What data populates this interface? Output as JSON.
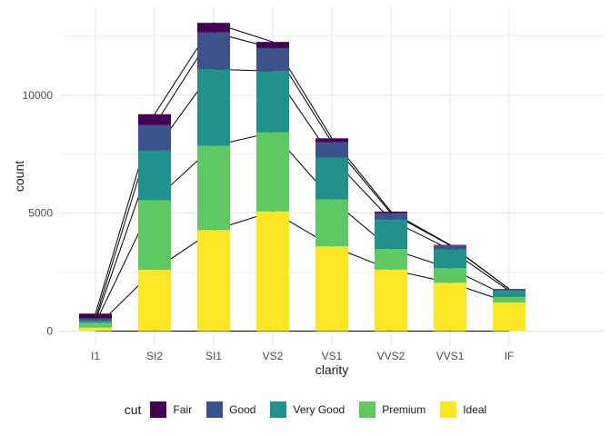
{
  "chart_data": {
    "type": "bar",
    "variant": "stacked-bars-with-cumulative-boundary-lines",
    "title": "",
    "xlabel": "clarity",
    "ylabel": "count",
    "categories": [
      "I1",
      "SI2",
      "SI1",
      "VS2",
      "VS1",
      "VVS2",
      "VVS1",
      "IF"
    ],
    "series": [
      {
        "name": "Fair",
        "color": "#440154",
        "values": [
          210,
          466,
          408,
          261,
          170,
          69,
          17,
          9
        ]
      },
      {
        "name": "Good",
        "color": "#3b528b",
        "values": [
          96,
          1081,
          1560,
          978,
          648,
          286,
          186,
          71
        ]
      },
      {
        "name": "Very Good",
        "color": "#21918c",
        "values": [
          84,
          2100,
          3240,
          2591,
          1775,
          1235,
          789,
          268
        ]
      },
      {
        "name": "Premium",
        "color": "#5ec962",
        "values": [
          205,
          2949,
          3575,
          3357,
          1989,
          870,
          616,
          230
        ]
      },
      {
        "name": "Ideal",
        "color": "#fde725",
        "values": [
          146,
          2598,
          4282,
          5071,
          3589,
          2606,
          2047,
          1212
        ]
      }
    ],
    "stack_order_bottom_to_top": [
      "Ideal",
      "Premium",
      "Very Good",
      "Good",
      "Fair"
    ],
    "totals": [
      741,
      9194,
      13065,
      12258,
      8171,
      5066,
      3655,
      1790
    ],
    "y_axis": {
      "major_ticks": [
        0,
        5000,
        10000
      ],
      "major_tick_labels": [
        "0",
        "5000",
        "10000"
      ],
      "minor_ticks": [
        2500,
        7500,
        12500
      ],
      "range": [
        -650,
        13730
      ]
    },
    "overlay_lines": {
      "description": "thin black lines joining cumulative stack boundaries (including the 0 baseline) across category centers, drawn behind the bars",
      "color": "#000000"
    },
    "legend": {
      "title": "cut",
      "position": "bottom",
      "items": [
        "Fair",
        "Good",
        "Very Good",
        "Premium",
        "Ideal"
      ]
    },
    "grid": {
      "show": true,
      "major_color": "#e4e4e4",
      "minor_color": "#f0f0f0",
      "background": "#ffffff"
    },
    "text_colors": {
      "tick_labels": "#4d4d4d",
      "axis_titles": "#1a1a1a"
    }
  }
}
